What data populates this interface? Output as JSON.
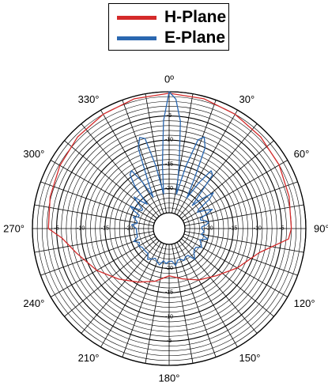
{
  "chart_data": {
    "type": "polar-line",
    "series": [
      {
        "name": "H-Plane",
        "color": "#d42a2a",
        "angles": [
          0,
          15,
          30,
          45,
          60,
          75,
          90,
          95,
          105,
          120,
          135,
          150,
          165,
          180,
          195,
          210,
          225,
          240,
          255,
          265,
          270,
          285,
          300,
          315,
          330,
          345
        ],
        "values": [
          -0.3,
          -0.5,
          -1.0,
          -1.5,
          -2.0,
          -2.6,
          -3.0,
          -3.5,
          -9.0,
          -12.0,
          -14.5,
          -16.0,
          -17.5,
          -18.5,
          -17.0,
          -15.5,
          -13.5,
          -11.0,
          -8.5,
          -6.0,
          -3.3,
          -2.8,
          -2.2,
          -1.5,
          -1.0,
          -0.5
        ]
      },
      {
        "name": "E-Plane",
        "color": "#2a67b0",
        "angles": [
          0,
          3,
          6,
          9,
          12,
          15,
          18,
          21,
          24,
          27,
          30,
          33,
          36,
          39,
          42,
          45,
          48,
          51,
          54,
          57,
          60,
          63,
          66,
          69,
          72,
          75,
          78,
          81,
          84,
          87,
          90,
          95,
          100,
          105,
          110,
          115,
          120,
          125,
          130,
          135,
          140,
          145,
          150,
          155,
          160,
          165,
          170,
          175,
          180,
          185,
          190,
          195,
          200,
          205,
          210,
          215,
          220,
          225,
          230,
          235,
          240,
          245,
          250,
          255,
          260,
          265,
          270,
          273,
          276,
          279,
          282,
          285,
          288,
          291,
          294,
          297,
          300,
          303,
          306,
          309,
          312,
          315,
          318,
          321,
          324,
          327,
          330,
          333,
          336,
          339,
          342,
          345,
          348,
          351,
          354,
          357
        ],
        "values": [
          0,
          -1.5,
          -6.0,
          -15.0,
          -21.0,
          -15.0,
          -9.0,
          -8.0,
          -10.0,
          -17.0,
          -21.0,
          -17.0,
          -13.5,
          -14.0,
          -19.0,
          -21.5,
          -19.0,
          -16.5,
          -18.0,
          -21.0,
          -21.5,
          -20.0,
          -18.5,
          -20.0,
          -21.5,
          -21.5,
          -20.5,
          -20.0,
          -20.5,
          -21.5,
          -21.5,
          -21.0,
          -21.5,
          -20.0,
          -21.5,
          -21.0,
          -20.5,
          -21.5,
          -21.5,
          -21.0,
          -20.0,
          -21.5,
          -21.5,
          -21.0,
          -21.5,
          -21.5,
          -20.5,
          -21.5,
          -21.5,
          -21.0,
          -21.5,
          -20.5,
          -21.0,
          -21.5,
          -21.0,
          -20.5,
          -21.5,
          -21.5,
          -21.5,
          -21.5,
          -21.0,
          -21.5,
          -20.5,
          -21.5,
          -21.5,
          -21.5,
          -21.5,
          -21.0,
          -20.5,
          -21.5,
          -21.5,
          -21.0,
          -20.5,
          -21.5,
          -21.5,
          -20.0,
          -19.0,
          -21.5,
          -21.5,
          -20.0,
          -18.5,
          -20.5,
          -21.5,
          -17.0,
          -14.5,
          -14.0,
          -17.0,
          -21.0,
          -17.5,
          -10.5,
          -8.5,
          -9.0,
          -15.0,
          -21.0,
          -15.0,
          -6.0
        ]
      }
    ],
    "radial_axis": {
      "range": [
        -25,
        0
      ],
      "ticks": [
        -5,
        -10,
        -15,
        -20
      ],
      "tick_labels": [
        "-5",
        "-10",
        "-15",
        "-20"
      ]
    },
    "angular_axis": {
      "ticks": [
        0,
        30,
        60,
        90,
        120,
        150,
        180,
        210,
        240,
        270,
        300,
        330
      ],
      "tick_labels": [
        "0º",
        "30°",
        "60°",
        "90°",
        "120°",
        "150°",
        "180°",
        "210°",
        "240°",
        "270°",
        "300°",
        "330°"
      ],
      "spoke_step": 10,
      "direction": "clockwise",
      "zero": "top"
    },
    "grid": true,
    "legend": {
      "position": "top-center",
      "entries": [
        "H-Plane",
        "E-Plane"
      ]
    }
  }
}
